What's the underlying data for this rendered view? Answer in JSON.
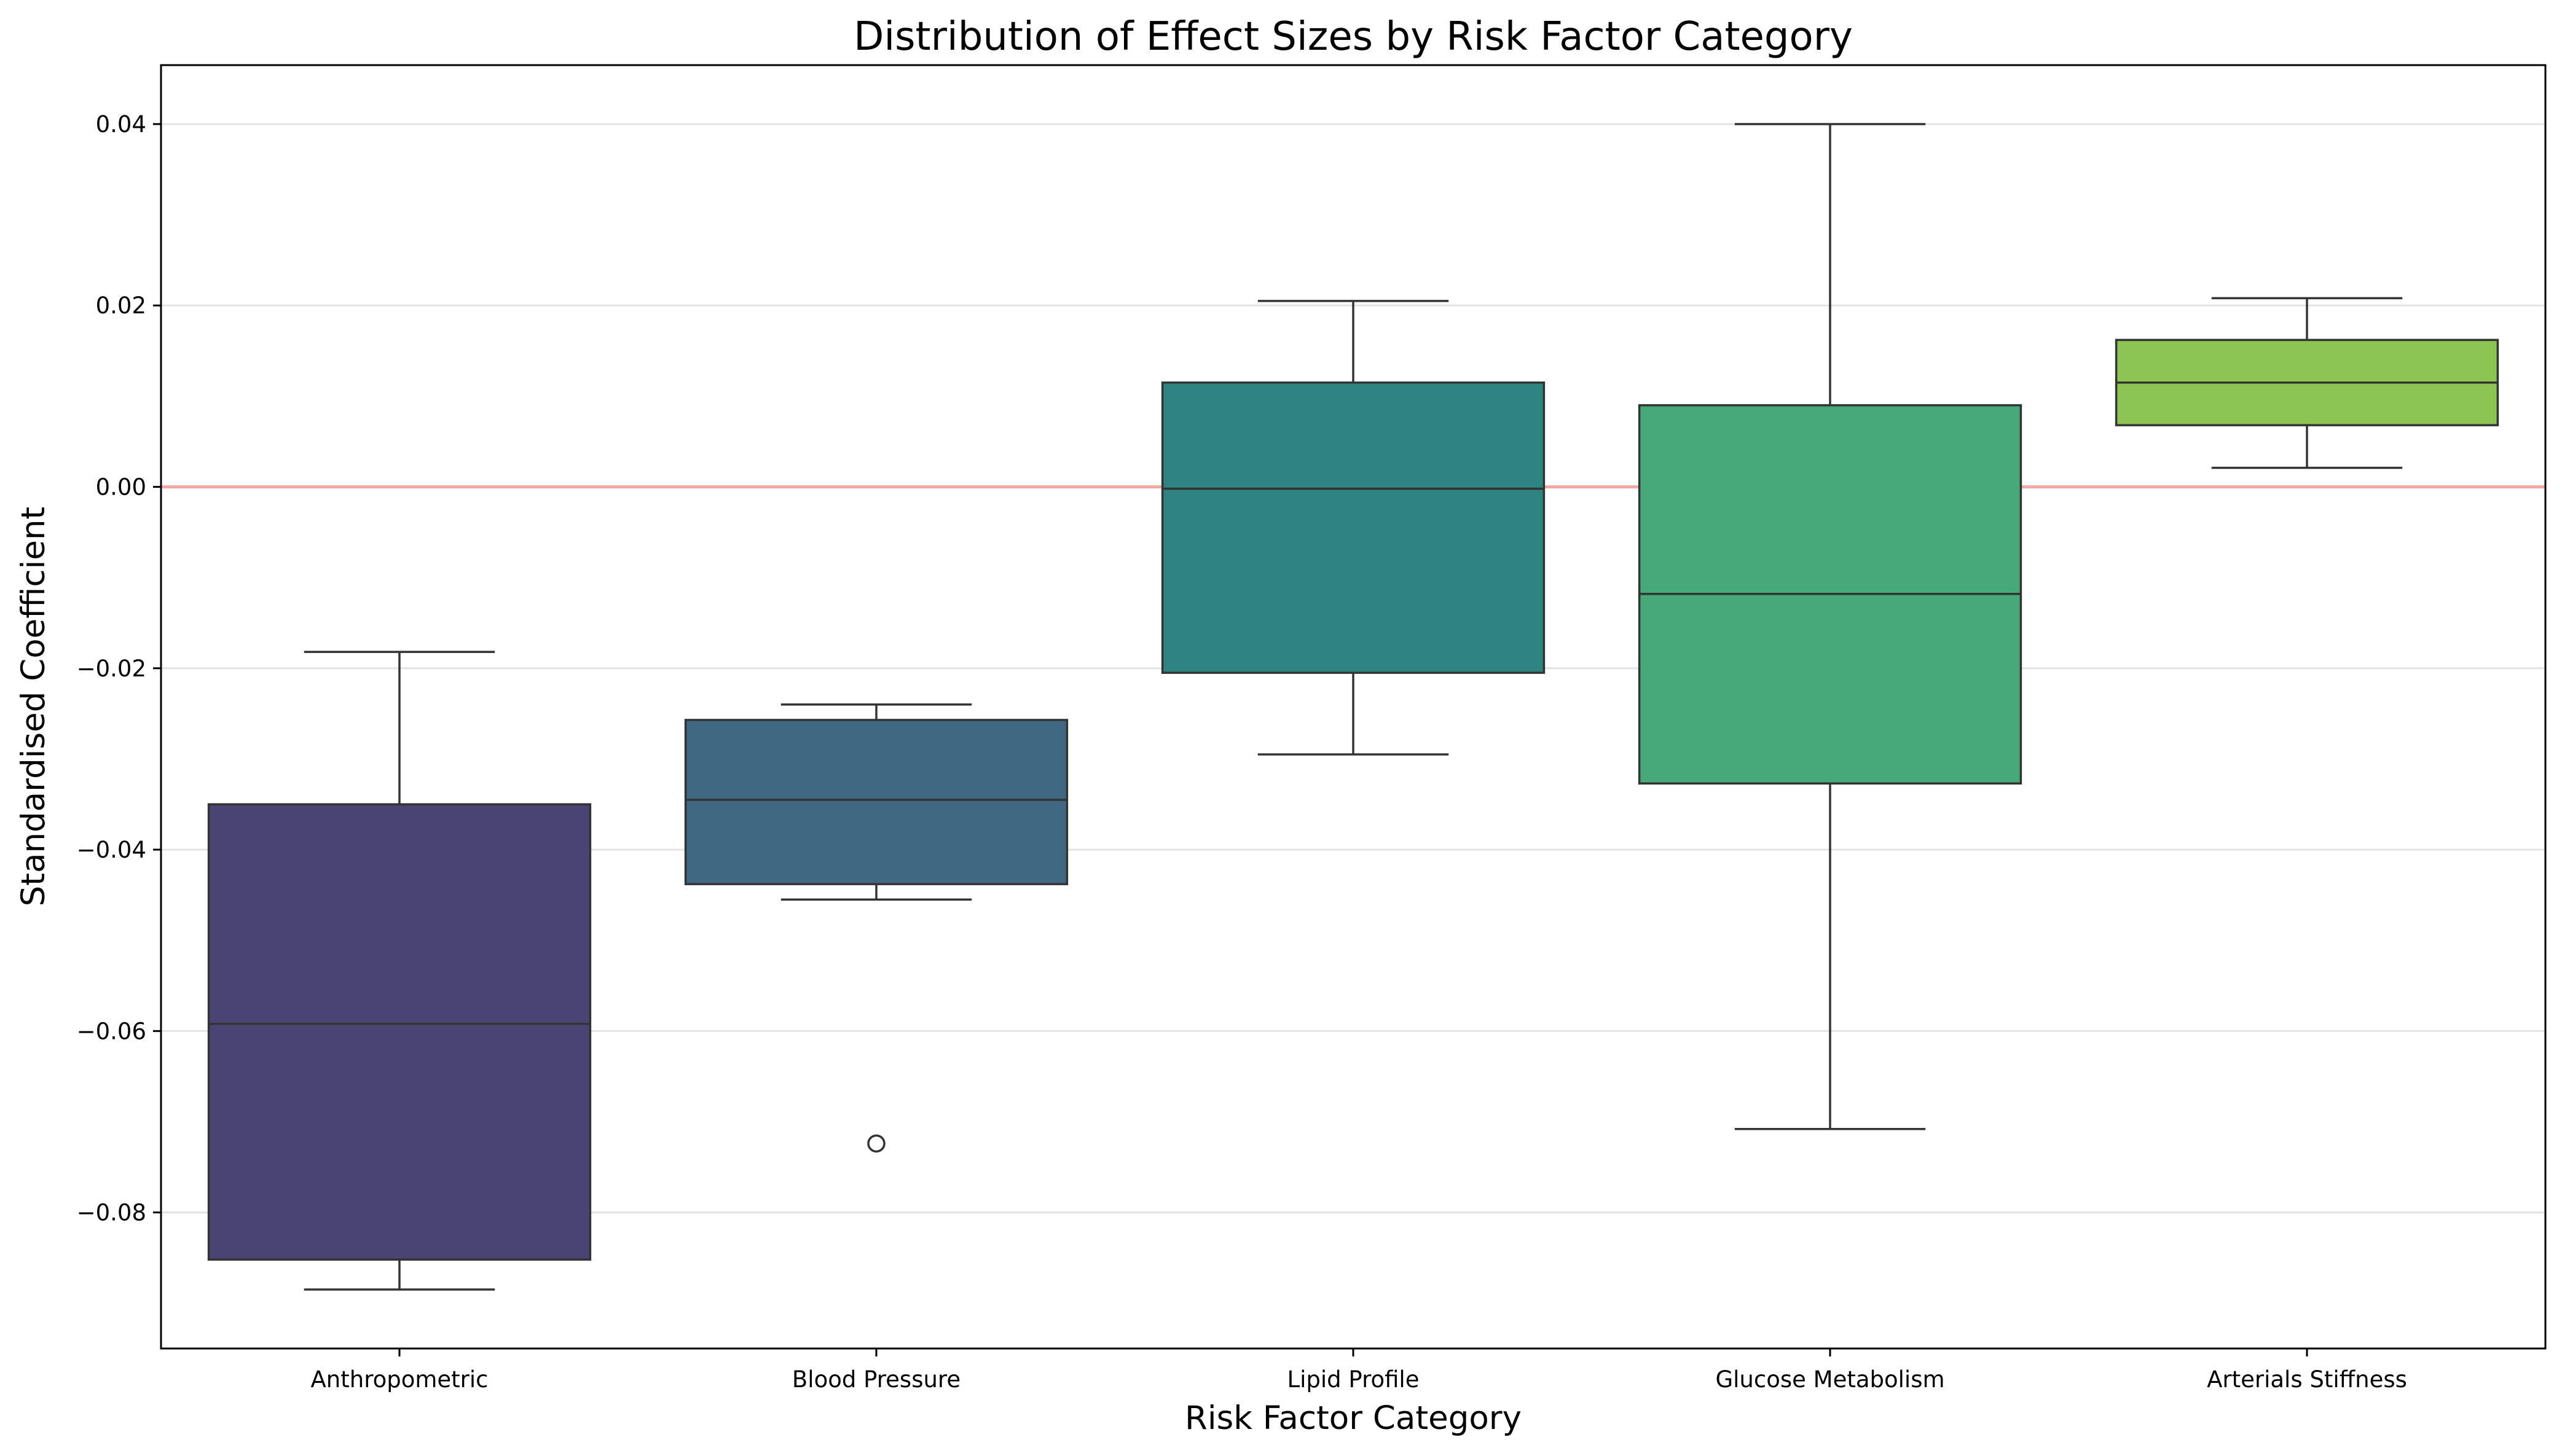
{
  "chart_data": {
    "type": "box",
    "title": "Distribution of Effect Sizes by Risk Factor Category",
    "xlabel": "Risk Factor Category",
    "ylabel": "Standardised Coefficient",
    "ylim": [
      -0.095,
      0.0465
    ],
    "yticks": [
      0.04,
      0.02,
      0.0,
      -0.02,
      -0.04,
      -0.06,
      -0.08
    ],
    "ytick_labels": [
      "0.04",
      "0.02",
      "0.00",
      "−0.02",
      "−0.04",
      "−0.06",
      "−0.08"
    ],
    "grid": "horizontal",
    "reference_line": {
      "y": 0.0,
      "color": "#f4a9a0"
    },
    "categories": [
      "Anthropometric",
      "Blood Pressure",
      "Lipid Profile",
      "Glucose Metabolism",
      "Arterials Stiffness"
    ],
    "boxes": [
      {
        "category": "Anthropometric",
        "whisker_low": -0.0885,
        "q1": -0.0852,
        "median": -0.0592,
        "q3": -0.035,
        "whisker_high": -0.0182,
        "outliers": [],
        "color": "#4a4475"
      },
      {
        "category": "Blood Pressure",
        "whisker_low": -0.0455,
        "q1": -0.0438,
        "median": -0.0345,
        "q3": -0.0257,
        "whisker_high": -0.024,
        "outliers": [
          -0.0724
        ],
        "color": "#3f6883"
      },
      {
        "category": "Lipid Profile",
        "whisker_low": -0.0295,
        "q1": -0.0205,
        "median": -0.0002,
        "q3": 0.0115,
        "whisker_high": 0.0205,
        "outliers": [],
        "color": "#2e847e"
      },
      {
        "category": "Glucose Metabolism",
        "whisker_low": -0.0708,
        "q1": -0.0327,
        "median": -0.0118,
        "q3": 0.009,
        "whisker_high": 0.04,
        "outliers": [],
        "color": "#47a878"
      },
      {
        "category": "Arterials Stiffness",
        "whisker_low": 0.0021,
        "q1": 0.0068,
        "median": 0.0115,
        "q3": 0.0162,
        "whisker_high": 0.0208,
        "outliers": [],
        "color": "#8dc552"
      }
    ]
  }
}
